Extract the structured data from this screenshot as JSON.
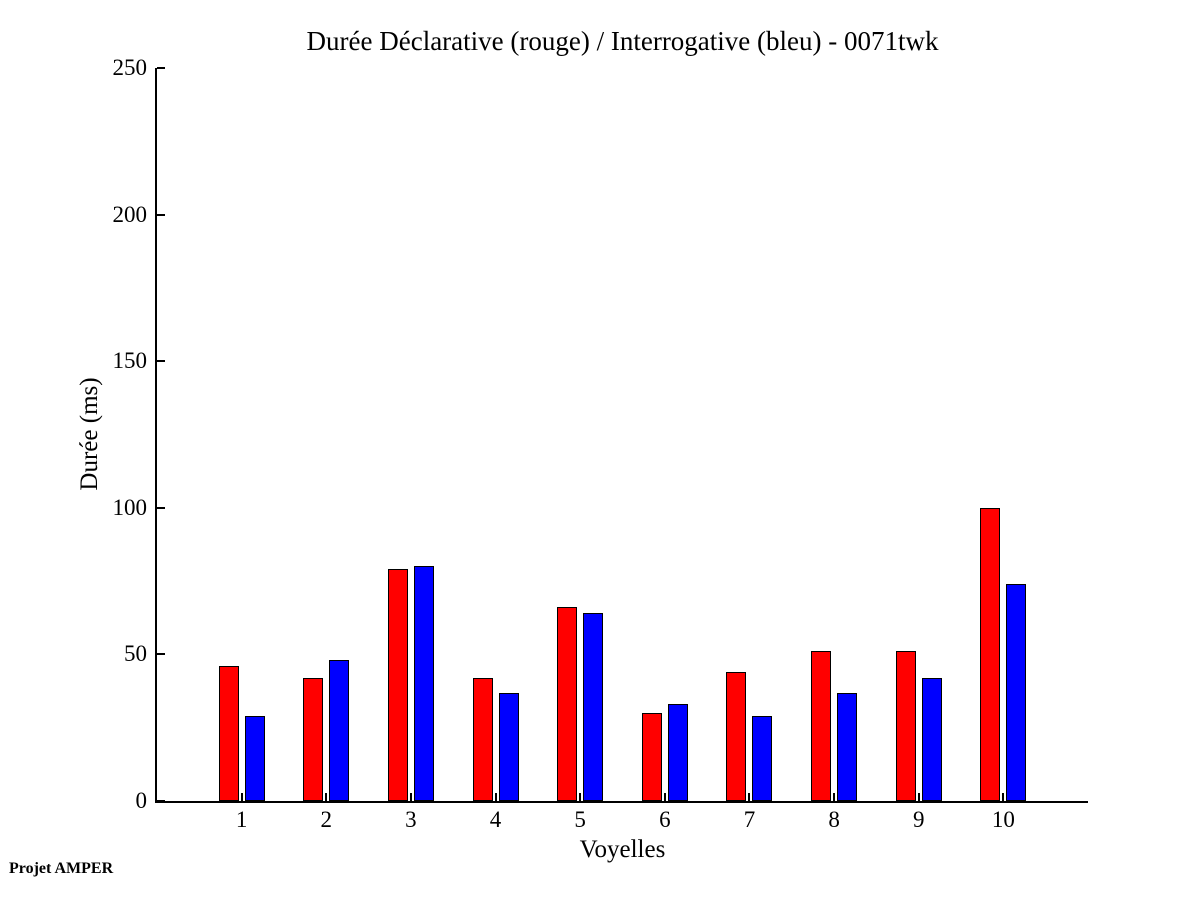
{
  "chart_data": {
    "type": "bar",
    "title": "Durée Déclarative (rouge) / Interrogative (bleu) - 0071twk",
    "xlabel": "Voyelles",
    "ylabel": "Durée (ms)",
    "categories": [
      "1",
      "2",
      "3",
      "4",
      "5",
      "6",
      "7",
      "8",
      "9",
      "10"
    ],
    "series": [
      {
        "name": "Déclarative",
        "color": "#ff0000",
        "values": [
          46,
          42,
          79,
          42,
          66,
          30,
          44,
          51,
          51,
          100
        ]
      },
      {
        "name": "Interrogative",
        "color": "#0000ff",
        "values": [
          29,
          48,
          80,
          37,
          64,
          33,
          29,
          37,
          42,
          74
        ]
      }
    ],
    "ylim": [
      0,
      250
    ],
    "yticks": [
      0,
      50,
      100,
      150,
      200,
      250
    ],
    "grid": false,
    "legend_position": "none"
  },
  "footer": {
    "credit": "Projet AMPER"
  },
  "colors": {
    "declarative_red": "#ff0000",
    "interrogative_blue": "#0000ff",
    "axis": "#000000",
    "background": "#ffffff",
    "text": "#000000"
  }
}
